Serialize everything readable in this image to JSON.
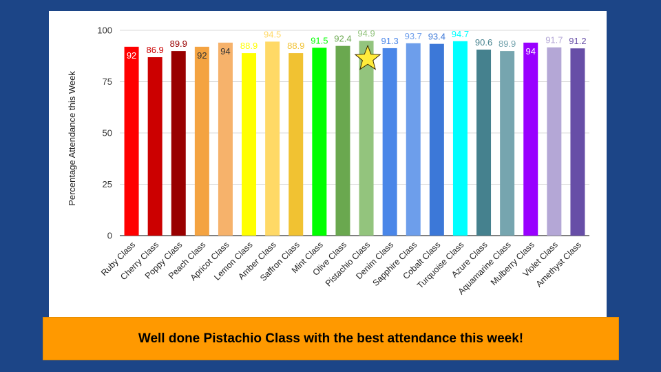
{
  "chart_data": {
    "type": "bar",
    "ylabel": "Percentage Attendance this Week",
    "ylim": [
      0,
      100
    ],
    "yticks": [
      0,
      25,
      50,
      75,
      100
    ],
    "grid": true,
    "legend": "none",
    "highlight_marker": "star",
    "highlight_category": "Pistachio Class",
    "categories": [
      "Ruby Class",
      "Cherry Class",
      "Poppy Class",
      "Peach Class",
      "Apricot Class",
      "Lemon Class",
      "Amber Class",
      "Saffron Class",
      "Mint Class",
      "Olive Class",
      "Pistachio Class",
      "Denim Class",
      "Sapphire Class",
      "Cobalt Class",
      "Turquoise Class",
      "Azure Class",
      "Aquamarine Class",
      "Mulberry Class",
      "Violet Class",
      "Amethyst Class"
    ],
    "values": [
      92,
      86.9,
      89.9,
      92,
      94,
      88.9,
      94.5,
      88.9,
      91.5,
      92.4,
      94.9,
      91.3,
      93.7,
      93.4,
      94.7,
      90.6,
      89.9,
      94,
      91.7,
      91.2
    ],
    "labels": [
      "92",
      "86.9",
      "89.9",
      "92",
      "94",
      "88.9",
      "94.5",
      "88.9",
      "91.5",
      "92.4",
      "94.9",
      "91.3",
      "93.7",
      "93.4",
      "94.7",
      "90.6",
      "89.9",
      "94",
      "91.7",
      "91.2"
    ],
    "label_inside": [
      true,
      false,
      false,
      true,
      true,
      false,
      false,
      false,
      false,
      false,
      false,
      false,
      false,
      false,
      false,
      false,
      false,
      true,
      false,
      false
    ],
    "colors": [
      "#ff0000",
      "#cc0000",
      "#990000",
      "#f4a341",
      "#f6b26b",
      "#ffff00",
      "#ffd966",
      "#f1c232",
      "#00ff00",
      "#6aa84f",
      "#93c47d",
      "#4a86e8",
      "#6d9eeb",
      "#3c78d8",
      "#00ffff",
      "#45818e",
      "#76a5af",
      "#9900ff",
      "#b4a7d6",
      "#674ea7"
    ],
    "label_colors": [
      "#ffffff",
      "#cc0000",
      "#990000",
      "#333333",
      "#333333",
      "#ffff00",
      "#ffd966",
      "#f1c232",
      "#00ff00",
      "#6aa84f",
      "#93c47d",
      "#4a86e8",
      "#6d9eeb",
      "#3c78d8",
      "#00ffff",
      "#45818e",
      "#76a5af",
      "#ffffff",
      "#b4a7d6",
      "#674ea7"
    ]
  },
  "banner": {
    "text": "Well done Pistachio Class with the best attendance this week!"
  },
  "colors": {
    "background": "#1c4587",
    "banner": "#ff9900",
    "star": "#ffeb3b"
  }
}
